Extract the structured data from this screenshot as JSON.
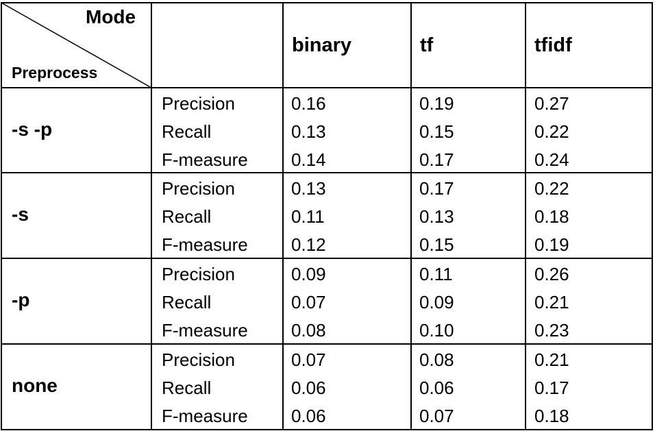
{
  "header": {
    "corner_top": "Mode",
    "corner_bottom": "Preprocess",
    "columns": [
      "binary",
      "tf",
      "tfidf"
    ]
  },
  "groups": [
    {
      "label": "-s -p",
      "rows": [
        {
          "metric": "Precision",
          "values": [
            "0.16",
            "0.19",
            "0.27"
          ]
        },
        {
          "metric": "Recall",
          "values": [
            "0.13",
            "0.15",
            "0.22"
          ]
        },
        {
          "metric": "F-measure",
          "values": [
            "0.14",
            "0.17",
            "0.24"
          ]
        }
      ]
    },
    {
      "label": "-s",
      "rows": [
        {
          "metric": "Precision",
          "values": [
            "0.13",
            "0.17",
            "0.22"
          ]
        },
        {
          "metric": "Recall",
          "values": [
            "0.11",
            "0.13",
            "0.18"
          ]
        },
        {
          "metric": "F-measure",
          "values": [
            "0.12",
            "0.15",
            "0.19"
          ]
        }
      ]
    },
    {
      "label": "-p",
      "rows": [
        {
          "metric": "Precision",
          "values": [
            "0.09",
            "0.11",
            "0.26"
          ]
        },
        {
          "metric": "Recall",
          "values": [
            "0.07",
            "0.09",
            "0.21"
          ]
        },
        {
          "metric": "F-measure",
          "values": [
            "0.08",
            "0.10",
            "0.23"
          ]
        }
      ]
    },
    {
      "label": "none",
      "rows": [
        {
          "metric": "Precision",
          "values": [
            "0.07",
            "0.08",
            "0.21"
          ]
        },
        {
          "metric": "Recall",
          "values": [
            "0.06",
            "0.06",
            "0.17"
          ]
        },
        {
          "metric": "F-measure",
          "values": [
            "0.06",
            "0.07",
            "0.18"
          ]
        }
      ]
    }
  ]
}
